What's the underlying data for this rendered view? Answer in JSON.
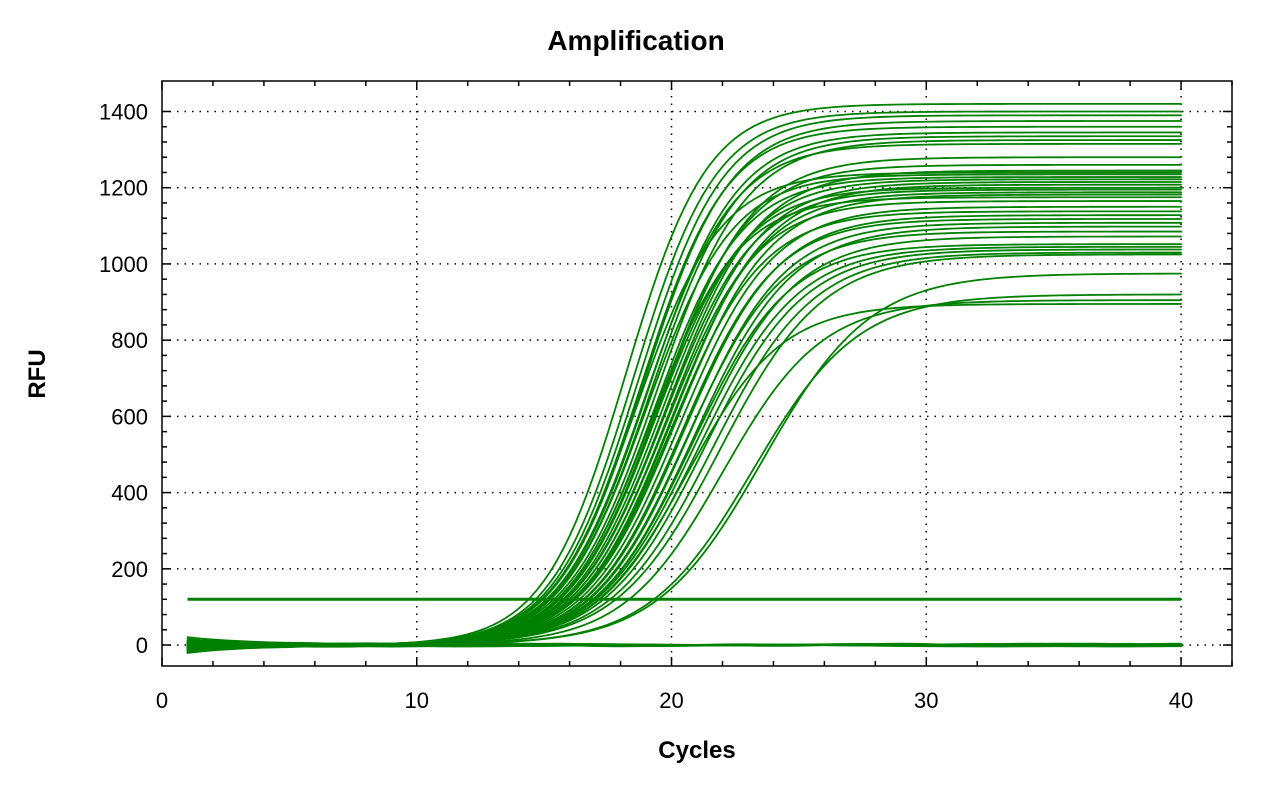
{
  "chart_data": {
    "type": "line",
    "title": "Amplification",
    "xlabel": "Cycles",
    "ylabel": "RFU",
    "xlim": [
      0,
      42
    ],
    "ylim": [
      -55,
      1480
    ],
    "x_ticks": [
      0,
      10,
      20,
      30,
      40
    ],
    "y_ticks": [
      0,
      200,
      400,
      600,
      800,
      1000,
      1200,
      1400
    ],
    "x_tick_labels": [
      "0",
      "10",
      "20",
      "30",
      "40"
    ],
    "y_tick_labels": [
      "0",
      "200",
      "400",
      "600",
      "800",
      "1000",
      "1200",
      "1400"
    ],
    "grid": true,
    "grid_style": "dotted",
    "line_color": "#008000",
    "threshold": 120,
    "x_start": 1,
    "x_end": 40,
    "curve_params": [
      {
        "plateau": 1420,
        "ct": 18.2,
        "slope": 1.6,
        "baseline_start": -20
      },
      {
        "plateau": 1400,
        "ct": 18.5,
        "slope": 1.62,
        "baseline_start": -10
      },
      {
        "plateau": 1390,
        "ct": 18.7,
        "slope": 1.65,
        "baseline_start": -5
      },
      {
        "plateau": 1375,
        "ct": 18.9,
        "slope": 1.68,
        "baseline_start": 5
      },
      {
        "plateau": 1360,
        "ct": 18.8,
        "slope": 1.66,
        "baseline_start": -15
      },
      {
        "plateau": 1345,
        "ct": 19.1,
        "slope": 1.7,
        "baseline_start": 0
      },
      {
        "plateau": 1335,
        "ct": 19.2,
        "slope": 1.72,
        "baseline_start": -12
      },
      {
        "plateau": 1325,
        "ct": 19.4,
        "slope": 1.74,
        "baseline_start": 10
      },
      {
        "plateau": 1315,
        "ct": 19.0,
        "slope": 1.7,
        "baseline_start": -8
      },
      {
        "plateau": 1280,
        "ct": 19.6,
        "slope": 1.76,
        "baseline_start": -3
      },
      {
        "plateau": 1260,
        "ct": 19.5,
        "slope": 1.74,
        "baseline_start": -18
      },
      {
        "plateau": 1245,
        "ct": 19.8,
        "slope": 1.78,
        "baseline_start": 2
      },
      {
        "plateau": 1240,
        "ct": 18.6,
        "slope": 1.65,
        "baseline_start": -6
      },
      {
        "plateau": 1235,
        "ct": 19.0,
        "slope": 1.68,
        "baseline_start": 8
      },
      {
        "plateau": 1228,
        "ct": 19.3,
        "slope": 1.7,
        "baseline_start": -14
      },
      {
        "plateau": 1222,
        "ct": 19.6,
        "slope": 1.74,
        "baseline_start": -2
      },
      {
        "plateau": 1215,
        "ct": 19.9,
        "slope": 1.77,
        "baseline_start": 6
      },
      {
        "plateau": 1208,
        "ct": 20.1,
        "slope": 1.8,
        "baseline_start": -9
      },
      {
        "plateau": 1200,
        "ct": 19.4,
        "slope": 1.72,
        "baseline_start": 3
      },
      {
        "plateau": 1195,
        "ct": 19.7,
        "slope": 1.75,
        "baseline_start": -16
      },
      {
        "plateau": 1188,
        "ct": 20.0,
        "slope": 1.78,
        "baseline_start": 0
      },
      {
        "plateau": 1182,
        "ct": 20.2,
        "slope": 1.82,
        "baseline_start": -7
      },
      {
        "plateau": 1175,
        "ct": 19.2,
        "slope": 1.7,
        "baseline_start": 4
      },
      {
        "plateau": 1165,
        "ct": 19.8,
        "slope": 1.76,
        "baseline_start": -11
      },
      {
        "plateau": 1150,
        "ct": 20.3,
        "slope": 1.82,
        "baseline_start": 1
      },
      {
        "plateau": 1138,
        "ct": 20.0,
        "slope": 1.79,
        "baseline_start": -4
      },
      {
        "plateau": 1128,
        "ct": 20.5,
        "slope": 1.84,
        "baseline_start": 7
      },
      {
        "plateau": 1118,
        "ct": 20.4,
        "slope": 1.82,
        "baseline_start": -13
      },
      {
        "plateau": 1108,
        "ct": 20.7,
        "slope": 1.86,
        "baseline_start": 2
      },
      {
        "plateau": 1098,
        "ct": 20.9,
        "slope": 1.9,
        "baseline_start": -6
      },
      {
        "plateau": 1085,
        "ct": 20.6,
        "slope": 1.86,
        "baseline_start": 5
      },
      {
        "plateau": 1072,
        "ct": 21.0,
        "slope": 1.92,
        "baseline_start": -10
      },
      {
        "plateau": 1052,
        "ct": 20.8,
        "slope": 1.88,
        "baseline_start": 0
      },
      {
        "plateau": 1045,
        "ct": 21.1,
        "slope": 1.92,
        "baseline_start": -5
      },
      {
        "plateau": 1038,
        "ct": 21.3,
        "slope": 1.95,
        "baseline_start": 3
      },
      {
        "plateau": 1030,
        "ct": 21.6,
        "slope": 1.98,
        "baseline_start": -8
      },
      {
        "plateau": 1025,
        "ct": 21.9,
        "slope": 2.02,
        "baseline_start": 1
      },
      {
        "plateau": 975,
        "ct": 23.6,
        "slope": 2.1,
        "baseline_start": -4
      },
      {
        "plateau": 920,
        "ct": 23.2,
        "slope": 2.05,
        "baseline_start": 2
      },
      {
        "plateau": 905,
        "ct": 22.0,
        "slope": 1.95,
        "baseline_start": -9
      },
      {
        "plateau": 895,
        "ct": 20.6,
        "slope": 1.85,
        "baseline_start": 0
      }
    ],
    "flat_series_count": 8
  }
}
